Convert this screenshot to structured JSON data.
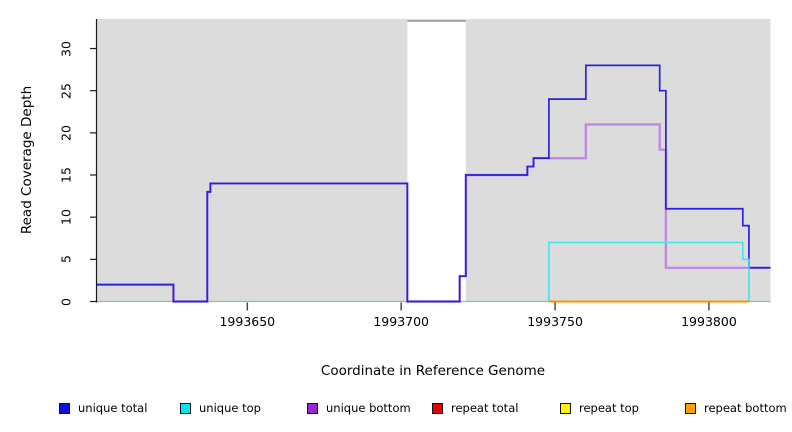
{
  "chart_data": {
    "type": "line",
    "subtype": "step-coverage",
    "title": "",
    "xlabel": "Coordinate in Reference Genome",
    "ylabel": "Read Coverage Depth",
    "xlim": [
      1993601,
      1993820
    ],
    "ylim": [
      0,
      33.5
    ],
    "x_ticks": [
      "1993650",
      "1993700",
      "1993750",
      "1993800"
    ],
    "x_tick_values": [
      1993650,
      1993700,
      1993750,
      1993800
    ],
    "y_ticks": [
      "0",
      "5",
      "10",
      "15",
      "20",
      "25",
      "30"
    ],
    "y_tick_values": [
      0,
      5,
      10,
      15,
      20,
      25,
      30
    ],
    "grid": false,
    "plot_background": "#dcdcdc",
    "gap_region": {
      "x_start": 1993702,
      "x_end": 1993721,
      "fill": "#ffffff",
      "top_border_color": "#909090",
      "note": "white uncovered window in plot background"
    },
    "baseline": {
      "y": 0,
      "color": "#85c985"
    },
    "series": [
      {
        "name": "unique bottom",
        "color": "#bd8be1",
        "stroke_width": 2.4,
        "end_x": 1993820,
        "points": [
          [
            1993601,
            2
          ],
          [
            1993626,
            0
          ],
          [
            1993637,
            13
          ],
          [
            1993638,
            14
          ],
          [
            1993702,
            0
          ],
          [
            1993719,
            3
          ],
          [
            1993721,
            15
          ],
          [
            1993741,
            16
          ],
          [
            1993743,
            17
          ],
          [
            1993760,
            21
          ],
          [
            1993784,
            18
          ],
          [
            1993786,
            4
          ]
        ]
      },
      {
        "name": "unique total",
        "color": "#2b21de",
        "stroke_width": 1.7,
        "end_x": 1993820,
        "points": [
          [
            1993601,
            2
          ],
          [
            1993626,
            0
          ],
          [
            1993637,
            13
          ],
          [
            1993638,
            14
          ],
          [
            1993702,
            0
          ],
          [
            1993719,
            3
          ],
          [
            1993721,
            15
          ],
          [
            1993741,
            16
          ],
          [
            1993743,
            17
          ],
          [
            1993748,
            24
          ],
          [
            1993760,
            28
          ],
          [
            1993784,
            25
          ],
          [
            1993786,
            11
          ],
          [
            1993811,
            9
          ],
          [
            1993813,
            4
          ]
        ]
      },
      {
        "name": "unique top",
        "color": "#3be5e8",
        "stroke_width": 1.5,
        "end_x": 1993813,
        "points": [
          [
            1993748,
            0
          ],
          [
            1993748,
            7
          ],
          [
            1993811,
            5
          ],
          [
            1993813,
            0
          ]
        ]
      },
      {
        "name": "repeat bottom",
        "color": "#ff9000",
        "stroke_width": 2,
        "end_x": 1993813,
        "points": [
          [
            1993748,
            0
          ]
        ]
      }
    ]
  },
  "legend": {
    "items": [
      {
        "label": "unique total",
        "swatch": "#0f10e0"
      },
      {
        "label": "unique top",
        "swatch": "#00e5ee"
      },
      {
        "label": "unique bottom",
        "swatch": "#9726cf"
      },
      {
        "label": "repeat total",
        "swatch": "#e80000"
      },
      {
        "label": "repeat top",
        "swatch": "#fef400"
      },
      {
        "label": "repeat bottom",
        "swatch": "#ffa000"
      }
    ]
  },
  "axes_style": {
    "y_axis_line_color": "#1a1a1a",
    "y_tick_color": "#1a1a1a",
    "x_tick_color": "#4d4d4d"
  }
}
